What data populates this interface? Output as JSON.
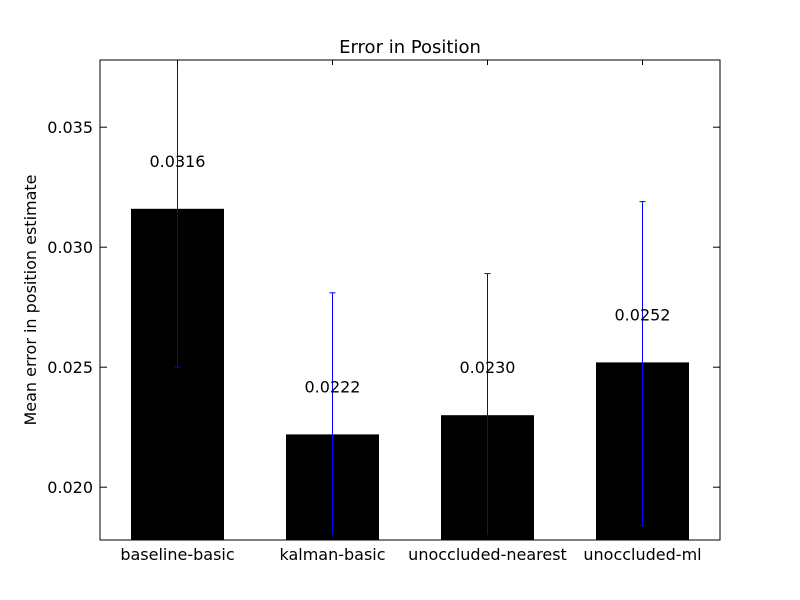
{
  "chart_data": {
    "type": "bar",
    "title": "Error in Position",
    "xlabel": "",
    "ylabel": "Mean error in position estimate",
    "categories": [
      "baseline-basic",
      "kalman-basic",
      "unoccluded-nearest",
      "unoccluded-ml"
    ],
    "values": [
      0.0316,
      0.0222,
      0.023,
      0.0252
    ],
    "value_labels": [
      "0.0316",
      "0.0222",
      "0.0230",
      "0.0252"
    ],
    "error_low": [
      0.025,
      0.0178,
      0.0178,
      0.0184
    ],
    "error_high": [
      0.0381,
      0.0281,
      0.0289,
      0.0319
    ],
    "ylim": [
      0.0178,
      0.0378
    ],
    "yticks": [
      0.02,
      0.025,
      0.03,
      0.035
    ],
    "ytick_labels": [
      "0.020",
      "0.025",
      "0.030",
      "0.035"
    ],
    "grid": false,
    "bar_color": "#000000",
    "errorbar_color": "#0000ff"
  }
}
